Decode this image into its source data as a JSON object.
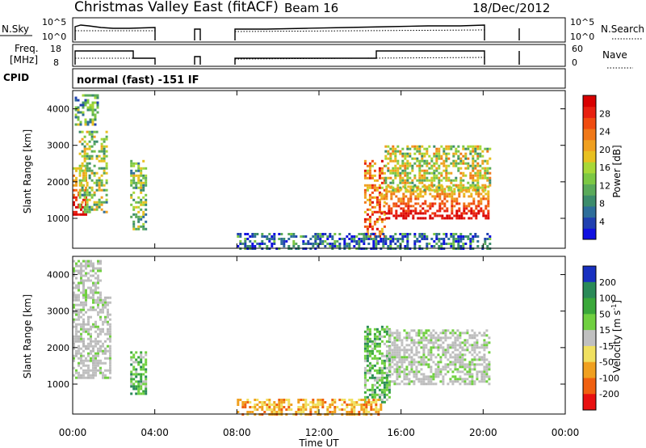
{
  "header": {
    "title": "Christmas Valley East (fitACF)",
    "beam": "Beam 16",
    "date": "18/Dec/2012"
  },
  "nsky_panel": {
    "left_label": "N.Sky",
    "left_ticks": [
      "10^5",
      "10^0"
    ],
    "right_label": "N.Search",
    "right_ticks": [
      "10^5",
      "10^0"
    ]
  },
  "freq_panel": {
    "left_label_line1": "Freq.",
    "left_label_line2": "[MHz]",
    "left_ticks": [
      "18",
      "8"
    ],
    "right_label": "Nave",
    "right_ticks": [
      "60",
      "0"
    ]
  },
  "cpid": {
    "label": "CPID",
    "value": "normal (fast) -151 IF"
  },
  "chart_data": [
    {
      "type": "heatmap",
      "name": "power",
      "ylabel": "Slant Range [km]",
      "xlabel": "",
      "x_ticks": [
        "00:00",
        "04:00",
        "08:00",
        "12:00",
        "16:00",
        "20:00",
        "00:00"
      ],
      "y_ticks": [
        1000,
        2000,
        3000,
        4000
      ],
      "ylim": [
        180,
        4500
      ],
      "xlim_hours": [
        0,
        24
      ],
      "colorbar": {
        "label": "Power [dB]",
        "ticks": [
          "4",
          "8",
          "12",
          "16",
          "20",
          "24",
          "28"
        ],
        "range": [
          0,
          32
        ],
        "colors": [
          "#1010e0",
          "#2040b0",
          "#2e6e9a",
          "#3c8c6c",
          "#5aaa5a",
          "#7cc844",
          "#a8d838",
          "#e8c020",
          "#f0a020",
          "#f07818",
          "#f04c10",
          "#e82010",
          "#d80000"
        ]
      },
      "regions": [
        {
          "t0": 0.0,
          "t1": 0.6,
          "r0": 1100,
          "r1": 2400,
          "level": 0.85
        },
        {
          "t0": 0.3,
          "t1": 1.6,
          "r0": 1200,
          "r1": 3400,
          "level": 0.45
        },
        {
          "t0": 0.1,
          "t1": 1.2,
          "r0": 3600,
          "r1": 4400,
          "level": 0.35
        },
        {
          "t0": 2.8,
          "t1": 3.6,
          "r0": 700,
          "r1": 2600,
          "level": 0.4
        },
        {
          "t0": 14.2,
          "t1": 15.2,
          "r0": 500,
          "r1": 2600,
          "level": 0.75
        },
        {
          "t0": 15.0,
          "t1": 20.3,
          "r0": 1000,
          "r1": 1900,
          "level": 0.9
        },
        {
          "t0": 15.2,
          "t1": 20.3,
          "r0": 1800,
          "r1": 3000,
          "level": 0.5
        },
        {
          "t0": 8.0,
          "t1": 20.3,
          "r0": 180,
          "r1": 600,
          "level": 0.2
        }
      ]
    },
    {
      "type": "heatmap",
      "name": "velocity",
      "ylabel": "Slant Range [km]",
      "xlabel": "Time UT",
      "x_ticks": [
        "00:00",
        "04:00",
        "08:00",
        "12:00",
        "16:00",
        "20:00",
        "00:00"
      ],
      "y_ticks": [
        1000,
        2000,
        3000,
        4000
      ],
      "ylim": [
        180,
        4500
      ],
      "xlim_hours": [
        0,
        24
      ],
      "colorbar": {
        "label": "Velocity [m s",
        "label_sup": "-1",
        "label_end": "]",
        "ticks": [
          "200",
          "100",
          "50",
          "15",
          "-15",
          "-50",
          "-100",
          "-200"
        ],
        "colors": [
          "#1830c0",
          "#2a8a58",
          "#3aa83a",
          "#70d040",
          "#c0c0c0",
          "#f0e060",
          "#f0a020",
          "#f06010",
          "#e81010"
        ]
      },
      "regions": [
        {
          "t0": 0.0,
          "t1": 1.8,
          "r0": 1200,
          "r1": 3400,
          "level": "gray"
        },
        {
          "t0": 0.0,
          "t1": 1.4,
          "r0": 3400,
          "r1": 4400,
          "level": "gray"
        },
        {
          "t0": 2.8,
          "t1": 3.6,
          "r0": 700,
          "r1": 1900,
          "level": "green"
        },
        {
          "t0": 14.2,
          "t1": 15.4,
          "r0": 500,
          "r1": 2600,
          "level": "green"
        },
        {
          "t0": 15.4,
          "t1": 20.3,
          "r0": 1000,
          "r1": 2500,
          "level": "gray"
        },
        {
          "t0": 8.0,
          "t1": 15.0,
          "r0": 180,
          "r1": 600,
          "level": "orange"
        }
      ]
    }
  ]
}
